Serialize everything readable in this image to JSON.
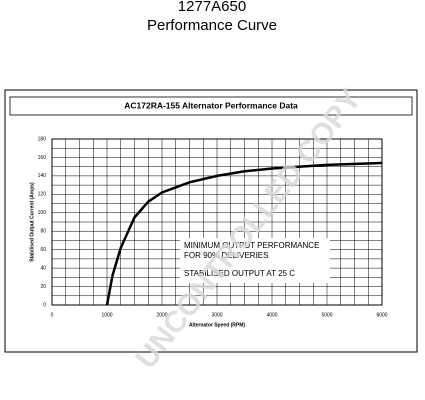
{
  "chart_data": {
    "type": "line",
    "header_code": "1277A650",
    "header_title": "Performance Curve",
    "title": "AC172RA-155 Alternator Performance Data",
    "xlabel": "Alternator Speed (RPM)",
    "ylabel": "Stabilised Output Current (Amps)",
    "annotations": [
      "MINIMUM OUTPUT PERFORMANCE",
      "FOR 90% DELIVERIES",
      "STABILISED OUTPUT AT 25 C"
    ],
    "watermark": "UNCONTROLLED COPY",
    "x": [
      1000,
      1100,
      1250,
      1500,
      1750,
      2000,
      2500,
      3000,
      3500,
      4000,
      5000,
      6000
    ],
    "series": [
      {
        "color": "#000000",
        "values": [
          0,
          32,
          62,
          95,
          112,
          122,
          133,
          140,
          145,
          148,
          152,
          154
        ]
      }
    ],
    "xlim": [
      0,
      6000
    ],
    "xticks": [
      0,
      1000,
      2000,
      3000,
      4000,
      5000,
      6000
    ],
    "ylim": [
      0,
      180
    ],
    "yticks": [
      0,
      20,
      40,
      60,
      80,
      100,
      120,
      140,
      160,
      180
    ],
    "xgrid": [
      0,
      250,
      500,
      750,
      1000,
      1250,
      1500,
      1750,
      2000,
      2250,
      2500,
      2750,
      3000,
      3250,
      3500,
      3750,
      4000,
      4250,
      4500,
      4750,
      5000,
      5250,
      5500,
      5750,
      6000
    ],
    "ygrid": [
      0,
      10,
      20,
      30,
      40,
      50,
      60,
      70,
      80,
      90,
      100,
      110,
      120,
      130,
      140,
      150,
      160,
      170,
      180
    ]
  }
}
